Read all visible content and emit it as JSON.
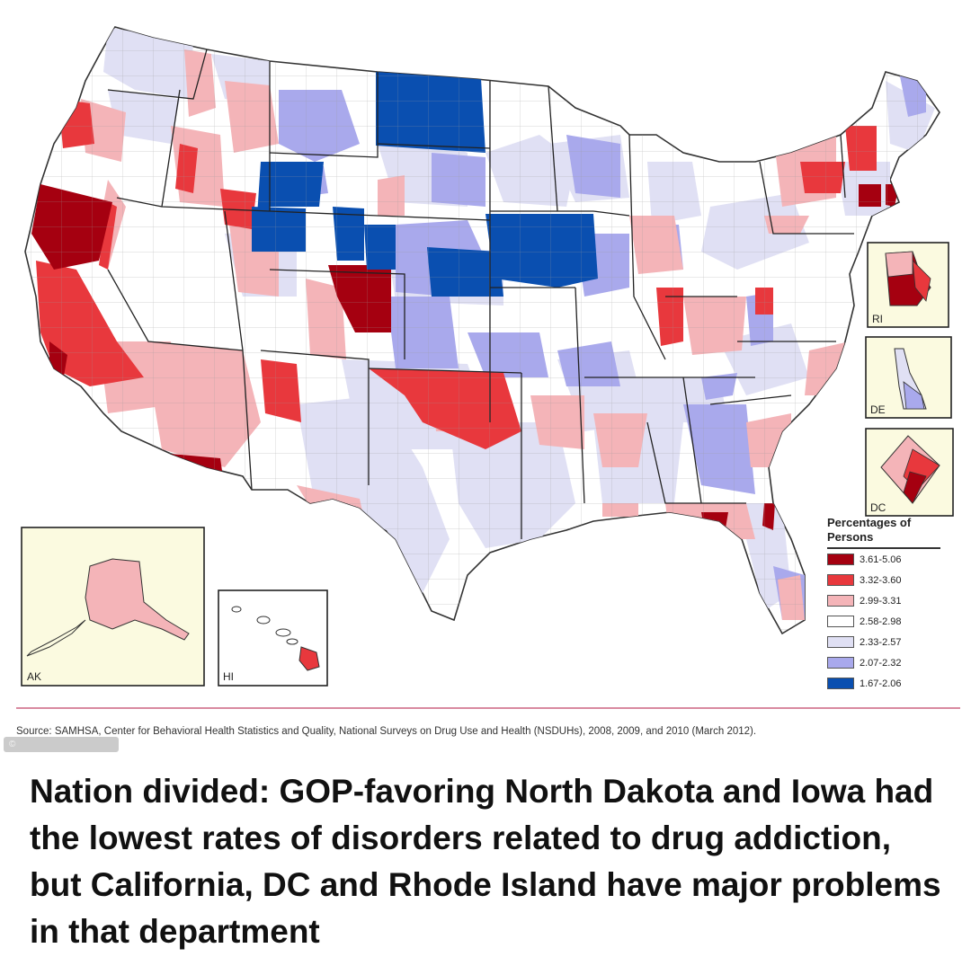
{
  "legend": {
    "title": "Percentages of Persons",
    "items": [
      {
        "range": "3.61-5.06",
        "color": "#a50010"
      },
      {
        "range": "3.32-3.60",
        "color": "#e8383d"
      },
      {
        "range": "2.99-3.31",
        "color": "#f4b4b8"
      },
      {
        "range": "2.58-2.98",
        "color": "#ffffff"
      },
      {
        "range": "2.33-2.57",
        "color": "#e0e0f4"
      },
      {
        "range": "2.07-2.32",
        "color": "#a9a9ec"
      },
      {
        "range": "1.67-2.06",
        "color": "#0a4fb0"
      }
    ]
  },
  "insets": {
    "rhode_island": "RI",
    "delaware": "DE",
    "dc": "DC",
    "alaska": "AK",
    "hawaii": "HI"
  },
  "source": "Source: SAMHSA, Center for Behavioral Health Statistics and Quality, National Surveys on Drug Use and Health (NSDUHs), 2008, 2009, and 2010 (March 2012).",
  "watermark": "©",
  "caption": "Nation divided: GOP-favoring North Dakota and Iowa had the lowest rates of disorders related to drug addiction, but California, DC and Rhode Island have major problems in that department"
}
